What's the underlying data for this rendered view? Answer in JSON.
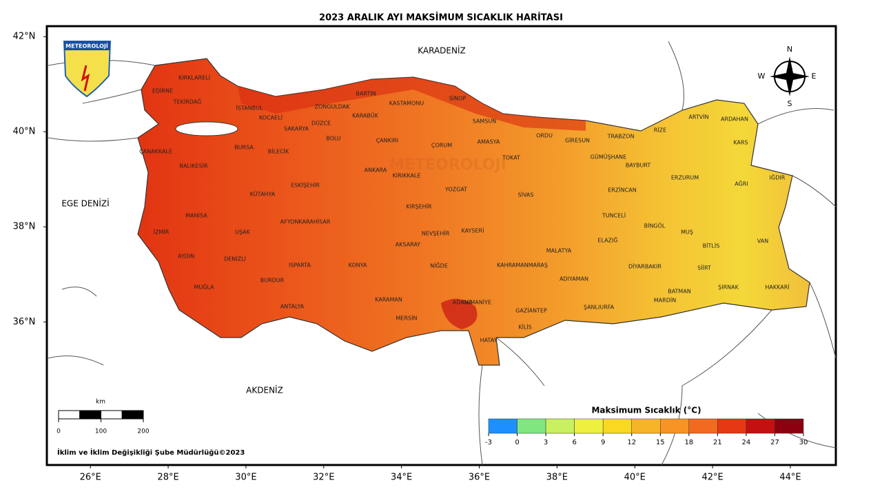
{
  "title": "2023 ARALIK AYI MAKSİMUM SICAKLIK HARİTASI",
  "logo": "METEOROLOJİ",
  "watermark": "METEOROLOJİ",
  "map": {
    "xlim": [
      24.88,
      45.17
    ],
    "ylim": [
      32.99,
      42.22
    ],
    "xticks": [
      {
        "value": 26,
        "label": "26°E"
      },
      {
        "value": 28,
        "label": "28°E"
      },
      {
        "value": 30,
        "label": "30°E"
      },
      {
        "value": 32,
        "label": "32°E"
      },
      {
        "value": 34,
        "label": "34°E"
      },
      {
        "value": 36,
        "label": "36°E"
      },
      {
        "value": 38,
        "label": "38°E"
      },
      {
        "value": 40,
        "label": "40°E"
      },
      {
        "value": 42,
        "label": "42°E"
      },
      {
        "value": 44,
        "label": "44°E"
      }
    ],
    "yticks": [
      {
        "value": 42,
        "label": "42°N"
      },
      {
        "value": 40,
        "label": "40°N"
      },
      {
        "value": 38,
        "label": "38°N"
      },
      {
        "value": 36,
        "label": "36°N"
      }
    ]
  },
  "seas": [
    "KARADENİZ",
    "EGE DENİZİ",
    "AKDENİZ"
  ],
  "provinces": [
    "KIRKLARELİ",
    "EDİRNE",
    "TEKİRDAĞ",
    "İSTANBUL",
    "KOCAELİ",
    "SAKARYA",
    "DÜZCE",
    "ZONGULDAK",
    "BARTIN",
    "KARABÜK",
    "KASTAMONU",
    "SİNOP",
    "SAMSUN",
    "ORDU",
    "GİRESUN",
    "TRABZON",
    "RİZE",
    "ARTVİN",
    "ARDAHAN",
    "KARS",
    "IĞDIR",
    "AĞRI",
    "ERZURUM",
    "BAYBURT",
    "GÜMÜŞHANE",
    "ERZİNCAN",
    "TOKAT",
    "AMASYA",
    "ÇORUM",
    "ÇANKIRI",
    "BOLU",
    "BİLECİK",
    "BURSA",
    "ÇANAKKALE",
    "BALIKESİR",
    "KÜTAHYA",
    "ESKİŞEHİR",
    "ANKARA",
    "KIRIKKALE",
    "YOZGAT",
    "SİVAS",
    "KIRŞEHİR",
    "NEVŞEHİR",
    "KAYSERİ",
    "MALATYA",
    "TUNCELİ",
    "ELAZIĞ",
    "BİNGÖL",
    "MUŞ",
    "BİTLİS",
    "VAN",
    "HAKKARİ",
    "ŞIRNAK",
    "SİİRT",
    "BATMAN",
    "DİYARBAKIR",
    "MARDİN",
    "ŞANLIURFA",
    "ADIYAMAN",
    "KAHRAMANMARAŞ",
    "GAZİANTEP",
    "KİLİS",
    "HATAY",
    "OSMANİYE",
    "ADANA",
    "MERSİN",
    "KARAMAN",
    "NİĞDE",
    "AKSARAY",
    "KONYA",
    "ISPARTA",
    "BURDUR",
    "ANTALYA",
    "MUĞLA",
    "AYDIN",
    "DENİZLİ",
    "UŞAK",
    "AFYONKARAHİSAR",
    "MANİSA",
    "İZMİR"
  ],
  "compass": [
    "N",
    "S",
    "W",
    "E"
  ],
  "scale": {
    "unit": "km",
    "ticks": [
      0,
      100,
      200
    ]
  },
  "legend": {
    "title": "Maksimum Sıcaklık (°C)",
    "ticks": [
      -3,
      0,
      3,
      6,
      9,
      12,
      15,
      18,
      21,
      24,
      27,
      30
    ],
    "colors": [
      "#1e8fff",
      "#80e680",
      "#c8f060",
      "#eef040",
      "#f8d820",
      "#f8b428",
      "#f89424",
      "#f26a1e",
      "#e63812",
      "#c41010",
      "#8c0010"
    ]
  },
  "footer": "İklim ve İklim Değişikliği Şube Müdürlüğü©2023"
}
